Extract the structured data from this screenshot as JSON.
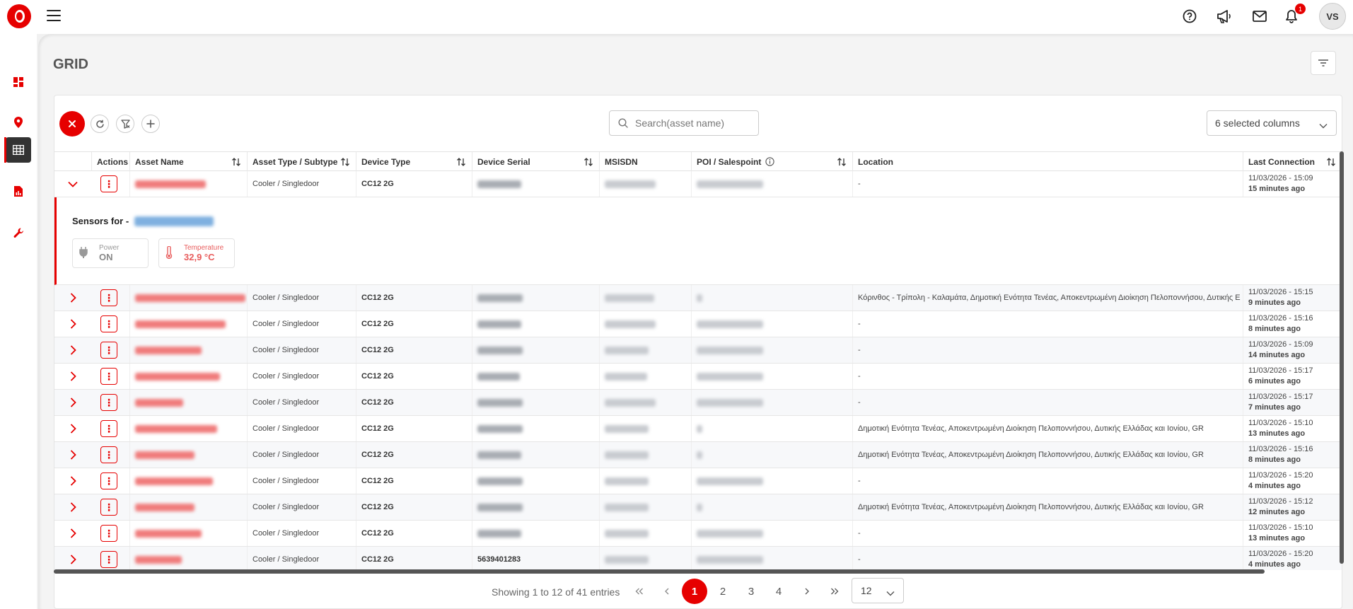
{
  "header": {
    "notification_count": "1",
    "user_initials": "VS"
  },
  "page": {
    "title": "GRID"
  },
  "toolbar": {
    "search_placeholder": "Search(asset name)",
    "columns_selected": "6 selected columns"
  },
  "table": {
    "columns": [
      "Actions",
      "Asset Name",
      "Asset Type / Subtype",
      "Device Type",
      "Device Serial",
      "MSISDN",
      "POI / Salespoint",
      "Location",
      "Last Connection"
    ],
    "action_glyph": "⋮",
    "rows": [
      {
        "type": "Cooler / Singledoor",
        "device": "CC12 2G",
        "serial": "",
        "location": "-",
        "date": "11/03/2026 - 15:09",
        "ago": "15 minutes ago",
        "expanded": true
      },
      {
        "type": "Cooler / Singledoor",
        "device": "CC12 2G",
        "serial": "",
        "location": "Κόρινθος - Τρίπολη - Καλαμάτα, Δημοτική Ενότητα Τενέας, Αποκεντρωμένη Διοίκηση Πελοποννήσου, Δυτικής Ε",
        "date": "11/03/2026 - 15:15",
        "ago": "9 minutes ago"
      },
      {
        "type": "Cooler / Singledoor",
        "device": "CC12 2G",
        "serial": "",
        "location": "-",
        "date": "11/03/2026 - 15:16",
        "ago": "8 minutes ago"
      },
      {
        "type": "Cooler / Singledoor",
        "device": "CC12 2G",
        "serial": "",
        "location": "-",
        "date": "11/03/2026 - 15:09",
        "ago": "14 minutes ago"
      },
      {
        "type": "Cooler / Singledoor",
        "device": "CC12 2G",
        "serial": "",
        "location": "-",
        "date": "11/03/2026 - 15:17",
        "ago": "6 minutes ago"
      },
      {
        "type": "Cooler / Singledoor",
        "device": "CC12 2G",
        "serial": "",
        "location": "-",
        "date": "11/03/2026 - 15:17",
        "ago": "7 minutes ago"
      },
      {
        "type": "Cooler / Singledoor",
        "device": "CC12 2G",
        "serial": "",
        "location": "Δημοτική Ενότητα Τενέας, Αποκεντρωμένη Διοίκηση Πελοποννήσου, Δυτικής Ελλάδας και Ιονίου, GR",
        "date": "11/03/2026 - 15:10",
        "ago": "13 minutes ago"
      },
      {
        "type": "Cooler / Singledoor",
        "device": "CC12 2G",
        "serial": "",
        "location": "Δημοτική Ενότητα Τενέας, Αποκεντρωμένη Διοίκηση Πελοποννήσου, Δυτικής Ελλάδας και Ιονίου, GR",
        "date": "11/03/2026 - 15:16",
        "ago": "8 minutes ago"
      },
      {
        "type": "Cooler / Singledoor",
        "device": "CC12 2G",
        "serial": "",
        "location": "-",
        "date": "11/03/2026 - 15:20",
        "ago": "4 minutes ago"
      },
      {
        "type": "Cooler / Singledoor",
        "device": "CC12 2G",
        "serial": "",
        "location": "Δημοτική Ενότητα Τενέας, Αποκεντρωμένη Διοίκηση Πελοποννήσου, Δυτικής Ελλάδας και Ιονίου, GR",
        "date": "11/03/2026 - 15:12",
        "ago": "12 minutes ago"
      },
      {
        "type": "Cooler / Singledoor",
        "device": "CC12 2G",
        "serial": "",
        "location": "-",
        "date": "11/03/2026 - 15:10",
        "ago": "13 minutes ago"
      },
      {
        "type": "Cooler / Singledoor",
        "device": "CC12 2G",
        "serial": "5639401283",
        "location": "-",
        "date": "11/03/2026 - 15:20",
        "ago": "4 minutes ago"
      }
    ]
  },
  "sensors": {
    "title": "Sensors for -",
    "power_label": "Power",
    "power_value": "ON",
    "temp_label": "Temperature",
    "temp_value": "32,9 °C"
  },
  "pagination": {
    "info": "Showing 1 to 12 of 41 entries",
    "pages": [
      "1",
      "2",
      "3",
      "4"
    ],
    "page_size": "12"
  },
  "colors": {
    "brand": "#e60000"
  }
}
